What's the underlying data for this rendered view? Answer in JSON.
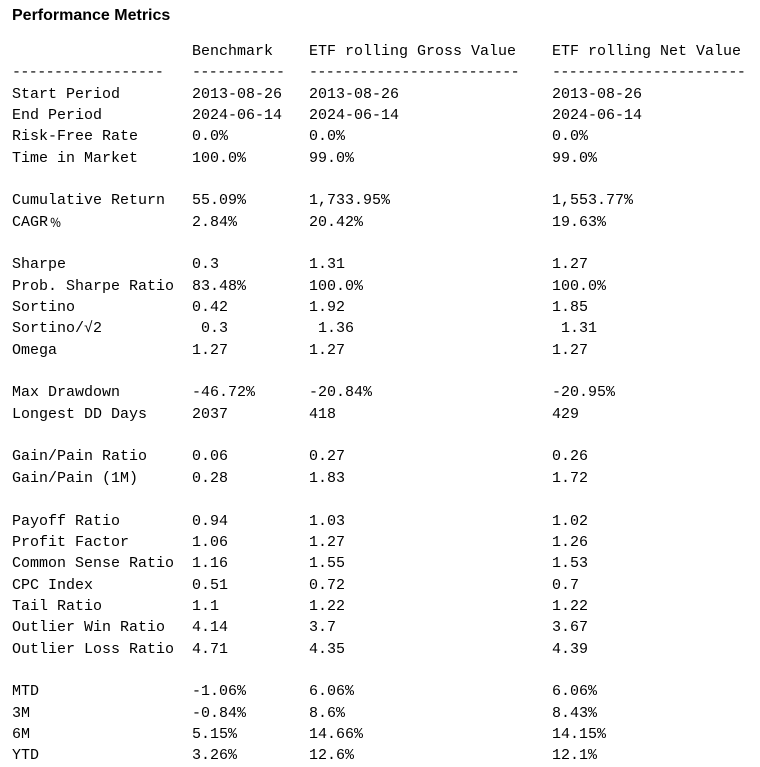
{
  "title": "Performance Metrics",
  "columns": [
    "",
    "Benchmark",
    "ETF rolling Gross Value",
    "ETF rolling Net Value"
  ],
  "separator": [
    "------------------",
    "-----------",
    "-------------------------",
    "-----------------------"
  ],
  "rows": [
    [
      "Start Period",
      "2013-08-26",
      "2013-08-26",
      "2013-08-26"
    ],
    [
      "End Period",
      "2024-06-14",
      "2024-06-14",
      "2024-06-14"
    ],
    [
      "Risk-Free Rate",
      "0.0%",
      "0.0%",
      "0.0%"
    ],
    [
      "Time in Market",
      "100.0%",
      "99.0%",
      "99.0%"
    ],
    [
      "",
      "",
      "",
      ""
    ],
    [
      "Cumulative Return",
      "55.09%",
      "1,733.95%",
      "1,553.77%"
    ],
    [
      "CAGR﹪",
      "2.84%",
      "20.42%",
      "19.63%"
    ],
    [
      "",
      "",
      "",
      ""
    ],
    [
      "Sharpe",
      "0.3",
      "1.31",
      "1.27"
    ],
    [
      "Prob. Sharpe Ratio",
      "83.48%",
      "100.0%",
      "100.0%"
    ],
    [
      "Sortino",
      "0.42",
      "1.92",
      "1.85"
    ],
    [
      "Sortino/√2",
      " 0.3",
      " 1.36",
      " 1.31"
    ],
    [
      "Omega",
      "1.27",
      "1.27",
      "1.27"
    ],
    [
      "",
      "",
      "",
      ""
    ],
    [
      "Max Drawdown",
      "-46.72%",
      "-20.84%",
      "-20.95%"
    ],
    [
      "Longest DD Days",
      "2037",
      "418",
      "429"
    ],
    [
      "",
      "",
      "",
      ""
    ],
    [
      "Gain/Pain Ratio",
      "0.06",
      "0.27",
      "0.26"
    ],
    [
      "Gain/Pain (1M)",
      "0.28",
      "1.83",
      "1.72"
    ],
    [
      "",
      "",
      "",
      ""
    ],
    [
      "Payoff Ratio",
      "0.94",
      "1.03",
      "1.02"
    ],
    [
      "Profit Factor",
      "1.06",
      "1.27",
      "1.26"
    ],
    [
      "Common Sense Ratio",
      "1.16",
      "1.55",
      "1.53"
    ],
    [
      "CPC Index",
      "0.51",
      "0.72",
      "0.7"
    ],
    [
      "Tail Ratio",
      "1.1",
      "1.22",
      "1.22"
    ],
    [
      "Outlier Win Ratio",
      "4.14",
      "3.7",
      "3.67"
    ],
    [
      "Outlier Loss Ratio",
      "4.71",
      "4.35",
      "4.39"
    ],
    [
      "",
      "",
      "",
      ""
    ],
    [
      "MTD",
      "-1.06%",
      "6.06%",
      "6.06%"
    ],
    [
      "3M",
      "-0.84%",
      "8.6%",
      "8.43%"
    ],
    [
      "6M",
      "5.15%",
      "14.66%",
      "14.15%"
    ],
    [
      "YTD",
      "3.26%",
      "12.6%",
      "12.1%"
    ]
  ]
}
